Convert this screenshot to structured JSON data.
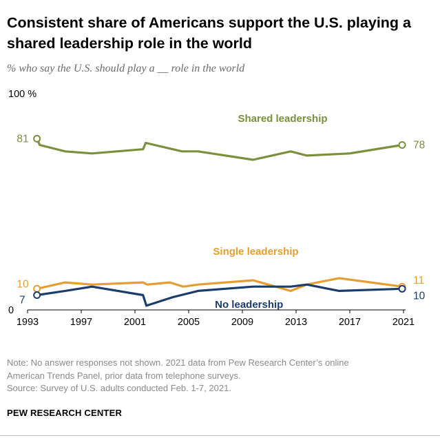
{
  "header": {
    "title": "Consistent share of Americans support the U.S. playing a shared leadership role in the world",
    "subtitle": "% who say the U.S. should play a __ role in the world"
  },
  "colors": {
    "shared": "#7c8f3a",
    "single": "#e59e2f",
    "none": "#1b3d6d"
  },
  "chart_data": {
    "type": "line",
    "title": "Consistent share of Americans support the U.S. playing a shared leadership role in the world",
    "ylabel": "% who say the U.S. should play a __ role in the world",
    "xlabel": "",
    "ylim": [
      0,
      100
    ],
    "xlim": [
      1993,
      2021
    ],
    "y_top_label": "100 %",
    "y_zero_label": "0",
    "x_ticks": [
      1993,
      1997,
      2001,
      2005,
      2009,
      2013,
      2017,
      2021
    ],
    "x_tick_labels": [
      "1993",
      "1997",
      "2001",
      "2005",
      "2009",
      "2013",
      "2017",
      "2021"
    ],
    "series": [
      {
        "name": "Shared leadership",
        "color": "#7c8f3a",
        "points": [
          [
            1993.7,
            81
          ],
          [
            1993.9,
            78
          ],
          [
            1995.8,
            75
          ],
          [
            1997.8,
            74
          ],
          [
            2001.6,
            76
          ],
          [
            2001.8,
            79
          ],
          [
            2004.5,
            75
          ],
          [
            2005.7,
            75
          ],
          [
            2009.8,
            71
          ],
          [
            2012.6,
            75
          ],
          [
            2013.8,
            73
          ],
          [
            2017,
            74
          ],
          [
            2020.9,
            78
          ]
        ],
        "start_label": "81",
        "end_label": "78"
      },
      {
        "name": "Single leadership",
        "color": "#e59e2f",
        "points": [
          [
            1993.7,
            10
          ],
          [
            1995.8,
            13
          ],
          [
            1997.8,
            12
          ],
          [
            2001.6,
            13
          ],
          [
            2001.9,
            12
          ],
          [
            2003.6,
            13
          ],
          [
            2004.6,
            11
          ],
          [
            2005.7,
            12
          ],
          [
            2009.8,
            14
          ],
          [
            2012.6,
            9
          ],
          [
            2013.8,
            12
          ],
          [
            2016.2,
            15
          ],
          [
            2020.9,
            11
          ]
        ],
        "start_label": "10",
        "end_label": "11"
      },
      {
        "name": "No leadership",
        "color": "#1b3d6d",
        "points": [
          [
            1993.7,
            7
          ],
          [
            1995.8,
            9
          ],
          [
            1997.8,
            11
          ],
          [
            2001.6,
            7
          ],
          [
            2001.85,
            2
          ],
          [
            2003.8,
            6
          ],
          [
            2005.7,
            9
          ],
          [
            2009.8,
            11
          ],
          [
            2012.6,
            11
          ],
          [
            2013.8,
            12
          ],
          [
            2016.2,
            9
          ],
          [
            2020.9,
            10
          ]
        ],
        "start_label": "7",
        "end_label": "10"
      }
    ],
    "annotations": [
      {
        "series": "Shared leadership",
        "text": "Shared leadership",
        "at": [
          2012,
          89
        ]
      },
      {
        "series": "Single leadership",
        "text": "Single leadership",
        "at": [
          2010,
          26
        ]
      },
      {
        "series": "No leadership",
        "text": "No leadership",
        "at": [
          2009.5,
          1
        ]
      }
    ]
  },
  "footer": {
    "note_line1": "Note: No answer responses not shown. 2021 data from Pew Research Center’s online",
    "note_line2": "American Trends Panel, prior data from telephone surveys.",
    "source": "Source: Survey of U.S. adults conducted Feb. 1-7, 2021.",
    "brand": "PEW RESEARCH CENTER"
  }
}
